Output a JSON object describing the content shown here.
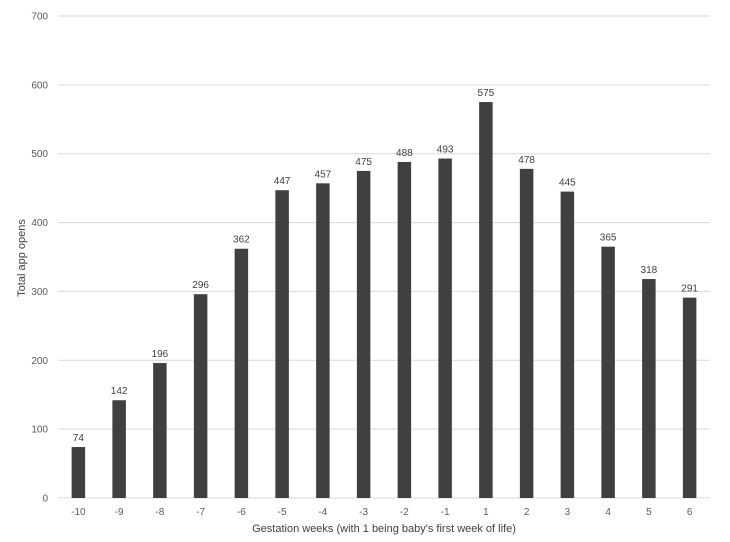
{
  "chart_data": {
    "type": "bar",
    "categories": [
      "-10",
      "-9",
      "-8",
      "-7",
      "-6",
      "-5",
      "-4",
      "-3",
      "-2",
      "-1",
      "1",
      "2",
      "3",
      "4",
      "5",
      "6"
    ],
    "values": [
      74,
      142,
      196,
      296,
      362,
      447,
      457,
      475,
      488,
      493,
      575,
      478,
      445,
      365,
      318,
      291
    ],
    "xlabel": "Gestation weeks (with 1 being baby's first week of life)",
    "ylabel": "Total app opens",
    "ylim": [
      0,
      700
    ],
    "yticks": [
      0,
      100,
      200,
      300,
      400,
      500,
      600,
      700
    ],
    "grid": true,
    "data_labels": true,
    "bar_color": "#404040",
    "grid_color": "#d9d9d9"
  }
}
